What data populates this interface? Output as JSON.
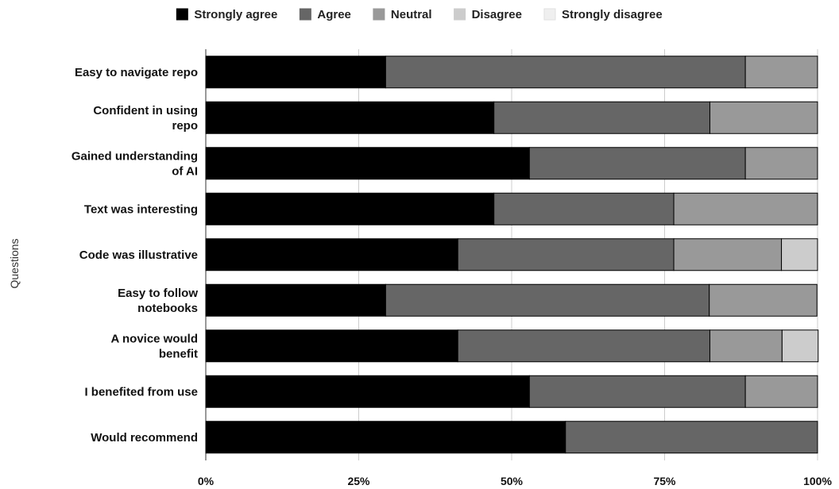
{
  "chart_data": {
    "type": "bar",
    "orientation": "horizontal",
    "stacked": true,
    "categories": [
      [
        "Easy to navigate repo"
      ],
      [
        "Confident in using",
        "repo"
      ],
      [
        "Gained understanding",
        "of AI"
      ],
      [
        "Text was interesting"
      ],
      [
        "Code was illustrative"
      ],
      [
        "Easy to follow",
        "notebooks"
      ],
      [
        "A novice would",
        "benefit"
      ],
      [
        "I benefited from use"
      ],
      [
        "Would recommend"
      ]
    ],
    "series": [
      {
        "name": "Strongly agree",
        "color": "#000000",
        "values": [
          29.4,
          47.1,
          52.9,
          47.1,
          41.2,
          29.4,
          41.2,
          52.9,
          58.8
        ]
      },
      {
        "name": "Agree",
        "color": "#666666",
        "values": [
          58.8,
          35.3,
          35.3,
          29.4,
          35.3,
          52.9,
          41.2,
          35.3,
          41.2
        ]
      },
      {
        "name": "Neutral",
        "color": "#999999",
        "values": [
          11.8,
          17.6,
          11.8,
          23.5,
          17.6,
          17.6,
          11.8,
          11.8,
          0
        ]
      },
      {
        "name": "Disagree",
        "color": "#cccccc",
        "values": [
          0,
          0,
          0,
          0,
          5.9,
          0,
          5.9,
          0,
          0
        ]
      },
      {
        "name": "Strongly disagree",
        "color": "#efefef",
        "values": [
          0,
          0,
          0,
          0,
          0,
          0,
          0,
          0,
          0
        ]
      }
    ],
    "xlim": [
      0,
      100
    ],
    "xticks": [
      "0%",
      "25%",
      "50%",
      "75%",
      "100%"
    ],
    "ylabel": "Questions",
    "legend_position": "top",
    "grid": true
  }
}
